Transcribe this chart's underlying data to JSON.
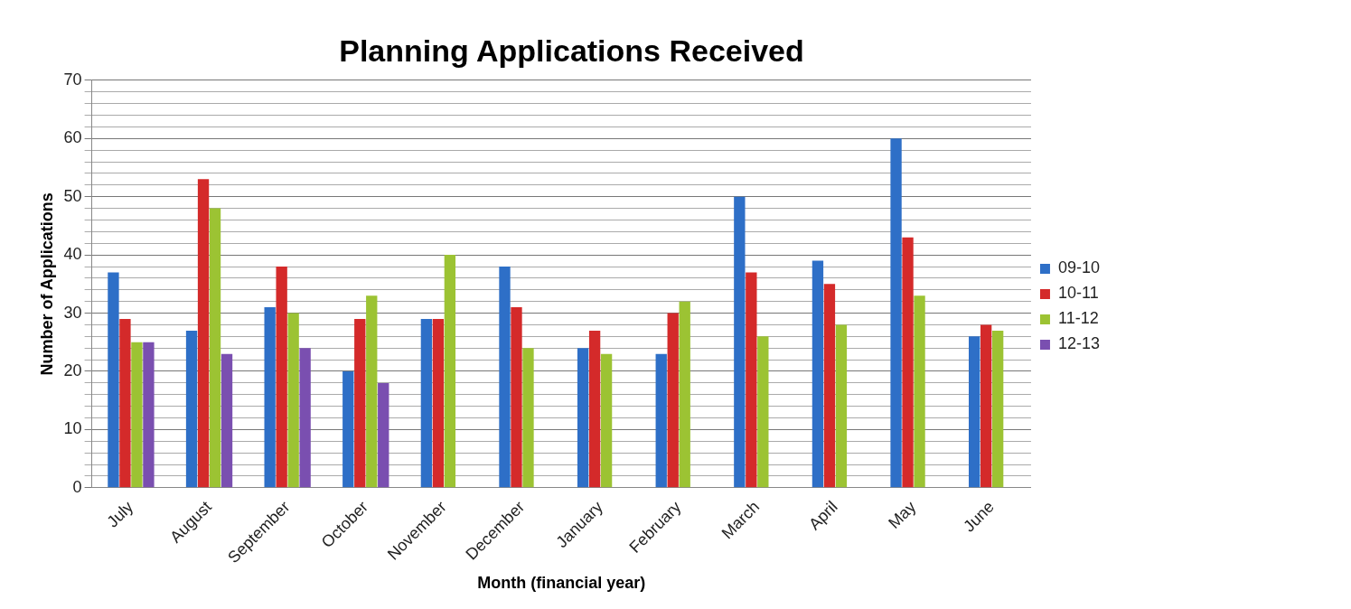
{
  "chart_data": {
    "type": "bar",
    "title": "Planning Applications Received",
    "xlabel": "Month (financial year)",
    "ylabel": "Number of Applications",
    "categories": [
      "July",
      "August",
      "September",
      "October",
      "November",
      "December",
      "January",
      "February",
      "March",
      "April",
      "May",
      "June"
    ],
    "series": [
      {
        "name": "09-10",
        "color": "#2e6fc7",
        "values": [
          37,
          27,
          31,
          20,
          29,
          38,
          24,
          23,
          50,
          39,
          60,
          26
        ]
      },
      {
        "name": "10-11",
        "color": "#d42a2a",
        "values": [
          29,
          53,
          38,
          29,
          29,
          31,
          27,
          30,
          37,
          35,
          43,
          28
        ]
      },
      {
        "name": "11-12",
        "color": "#9cc333",
        "values": [
          25,
          48,
          30,
          33,
          40,
          24,
          23,
          32,
          26,
          28,
          33,
          27
        ]
      },
      {
        "name": "12-13",
        "color": "#7a4fb0",
        "values": [
          25,
          23,
          24,
          18,
          null,
          null,
          null,
          null,
          null,
          null,
          null,
          null
        ]
      }
    ],
    "ylim": [
      0,
      70
    ],
    "yticks": [
      0,
      {
        "value": 2,
        "label": null
      },
      {
        "value": 4,
        "label": null
      },
      {
        "value": 6,
        "label": null
      },
      {
        "value": 8,
        "label": null
      },
      10,
      {
        "value": 12,
        "label": null
      },
      {
        "value": 14,
        "label": null
      },
      {
        "value": 16,
        "label": null
      },
      {
        "value": 18,
        "label": null
      },
      20,
      {
        "value": 22,
        "label": null
      },
      {
        "value": 24,
        "label": null
      },
      {
        "value": 26,
        "label": null
      },
      {
        "value": 28,
        "label": null
      },
      30,
      {
        "value": 32,
        "label": null
      },
      {
        "value": 34,
        "label": null
      },
      {
        "value": 36,
        "label": null
      },
      {
        "value": 38,
        "label": null
      },
      40,
      {
        "value": 42,
        "label": null
      },
      {
        "value": 44,
        "label": null
      },
      {
        "value": 46,
        "label": null
      },
      {
        "value": 48,
        "label": null
      },
      50,
      {
        "value": 52,
        "label": null
      },
      {
        "value": 54,
        "label": null
      },
      {
        "value": 56,
        "label": null
      },
      {
        "value": 58,
        "label": null
      },
      60,
      {
        "value": 62,
        "label": null
      },
      {
        "value": 64,
        "label": null
      },
      {
        "value": 66,
        "label": null
      },
      {
        "value": 68,
        "label": null
      },
      70
    ],
    "grid": "y",
    "legend": "right"
  }
}
